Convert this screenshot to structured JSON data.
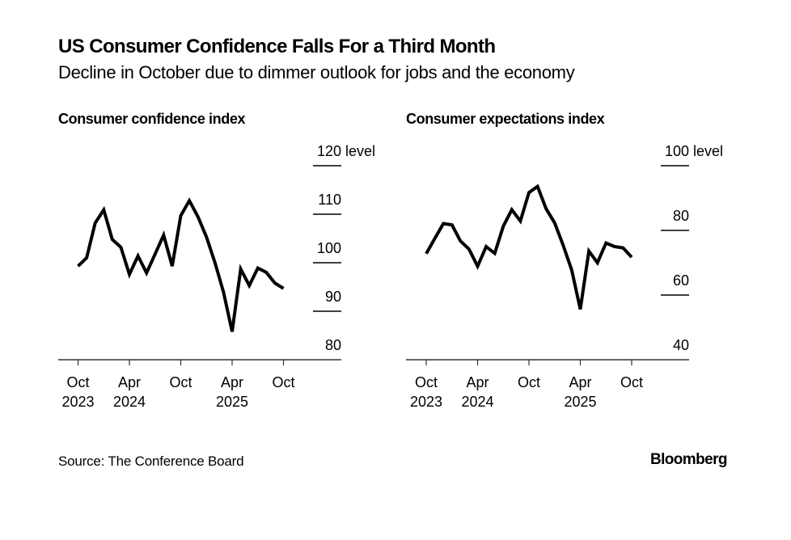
{
  "header": {
    "title": "US Consumer Confidence Falls For a Third Month",
    "subtitle": "Decline in October due to dimmer outlook for jobs and the economy"
  },
  "footer": {
    "source": "Source: The Conference Board",
    "brand": "Bloomberg"
  },
  "colors": {
    "line": "#000000",
    "grid": "#000000",
    "background": "#ffffff"
  },
  "chart_data": [
    {
      "type": "line",
      "title": "Consumer confidence index",
      "xlabel": "",
      "ylabel": "level",
      "ylim": [
        80,
        120
      ],
      "yticks": [
        80,
        90,
        100,
        110,
        120
      ],
      "ytick_labels": [
        "80",
        "90",
        "100",
        "110",
        "120 level"
      ],
      "grid": true,
      "x": [
        "Oct 2023",
        "Nov 2023",
        "Dec 2023",
        "Jan 2024",
        "Feb 2024",
        "Mar 2024",
        "Apr 2024",
        "May 2024",
        "Jun 2024",
        "Jul 2024",
        "Aug 2024",
        "Sep 2024",
        "Oct 2024",
        "Nov 2024",
        "Dec 2024",
        "Jan 2025",
        "Feb 2025",
        "Mar 2025",
        "Apr 2025",
        "May 2025",
        "Jun 2025",
        "Jul 2025",
        "Aug 2025",
        "Sep 2025",
        "Oct 2025"
      ],
      "xtick_labels": [
        {
          "index": 0,
          "line1": "Oct",
          "line2": "2023"
        },
        {
          "index": 6,
          "line1": "Apr",
          "line2": "2024"
        },
        {
          "index": 12,
          "line1": "Oct",
          "line2": ""
        },
        {
          "index": 18,
          "line1": "Apr",
          "line2": "2025"
        },
        {
          "index": 24,
          "line1": "Oct",
          "line2": ""
        }
      ],
      "series": [
        {
          "name": "Consumer confidence index",
          "values": [
            99.3,
            101.0,
            108.2,
            110.9,
            104.8,
            103.2,
            97.6,
            101.4,
            97.9,
            101.8,
            105.7,
            99.3,
            109.7,
            112.8,
            109.5,
            105.3,
            100.0,
            93.9,
            85.8,
            98.7,
            95.3,
            98.9,
            98.0,
            95.8,
            94.7
          ]
        }
      ]
    },
    {
      "type": "line",
      "title": "Consumer expectations index",
      "xlabel": "",
      "ylabel": "level",
      "ylim": [
        40,
        100
      ],
      "yticks": [
        40,
        60,
        80,
        100
      ],
      "ytick_labels": [
        "40",
        "60",
        "80",
        "100 level"
      ],
      "grid": true,
      "x": [
        "Oct 2023",
        "Nov 2023",
        "Dec 2023",
        "Jan 2024",
        "Feb 2024",
        "Mar 2024",
        "Apr 2024",
        "May 2024",
        "Jun 2024",
        "Jul 2024",
        "Aug 2024",
        "Sep 2024",
        "Oct 2024",
        "Nov 2024",
        "Dec 2024",
        "Jan 2025",
        "Feb 2025",
        "Mar 2025",
        "Apr 2025",
        "May 2025",
        "Jun 2025",
        "Jul 2025",
        "Aug 2025",
        "Sep 2025",
        "Oct 2025"
      ],
      "xtick_labels": [
        {
          "index": 0,
          "line1": "Oct",
          "line2": "2023"
        },
        {
          "index": 6,
          "line1": "Apr",
          "line2": "2024"
        },
        {
          "index": 12,
          "line1": "Oct",
          "line2": ""
        },
        {
          "index": 18,
          "line1": "Apr",
          "line2": "2025"
        },
        {
          "index": 24,
          "line1": "Oct",
          "line2": ""
        }
      ],
      "series": [
        {
          "name": "Consumer expectations index",
          "values": [
            72.8,
            77.5,
            82.1,
            81.7,
            76.7,
            74.2,
            68.9,
            75.0,
            72.9,
            81.3,
            86.4,
            82.9,
            91.7,
            93.6,
            86.7,
            82.3,
            75.4,
            67.7,
            55.6,
            73.6,
            70.0,
            76.1,
            75.0,
            74.6,
            71.7
          ]
        }
      ]
    }
  ]
}
